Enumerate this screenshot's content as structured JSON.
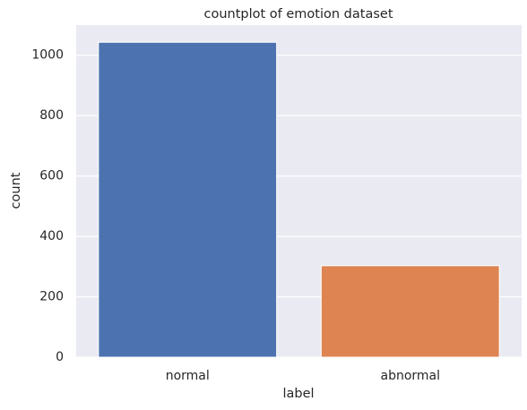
{
  "chart_data": {
    "type": "bar",
    "title": "countplot of emotion dataset",
    "x_label": "label",
    "y_label": "count",
    "categories": [
      "normal",
      "abnormal"
    ],
    "values": [
      1043,
      303
    ],
    "colors": [
      "#4c72b0",
      "#dd8452"
    ],
    "ylim": [
      0,
      1100
    ],
    "yticks": [
      0,
      200,
      400,
      600,
      800,
      1000
    ],
    "grid": true
  }
}
